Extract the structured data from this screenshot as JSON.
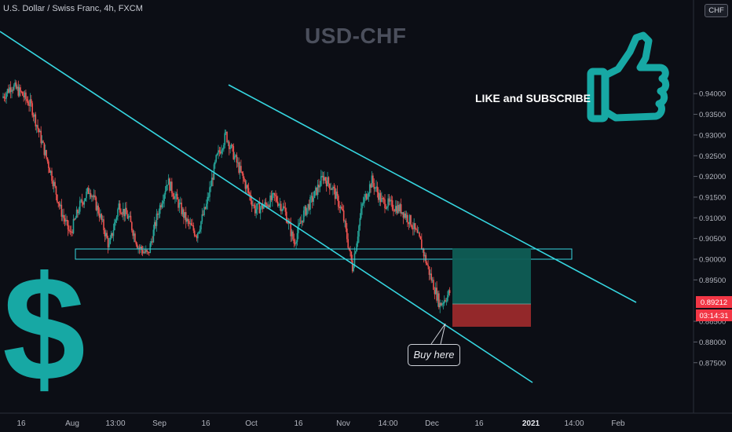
{
  "header": {
    "symbol_info": "U.S. Dollar / Swiss Franc, 4h, FXCM",
    "currency_button": "CHF"
  },
  "overlay": {
    "title": "USD-CHF",
    "like_text": "LIKE and SUBSCRIBE",
    "buy_label": "Buy here",
    "dollar_symbol": "$"
  },
  "colors": {
    "background": "#0c0e15",
    "trendline": "#36d6e0",
    "zone_border": "#36d6e0",
    "profit_box": "#0f5e55",
    "loss_box": "#9b2a2b",
    "up_candle": "#26a69a",
    "down_candle": "#ef5350",
    "icon_teal": "#17a8a4",
    "price_label": "#f23645"
  },
  "chart_data": {
    "type": "candlestick",
    "instrument": "USD-CHF",
    "timeframe": "4h",
    "ylim": [
      0.8725,
      0.9425
    ],
    "y_ticks": [
      "0.94000",
      "0.93500",
      "0.93000",
      "0.92500",
      "0.92000",
      "0.91500",
      "0.91000",
      "0.90500",
      "0.90000",
      "0.89500",
      "0.88500",
      "0.88000",
      "0.87500"
    ],
    "x_ticks": [
      "16",
      "Aug",
      "13:00",
      "Sep",
      "16",
      "Oct",
      "16",
      "Nov",
      "14:00",
      "Dec",
      "16",
      "2021",
      "14:00",
      "Feb"
    ],
    "last_price": "0.89212",
    "countdown": "03:14:31",
    "price_path": [
      {
        "x": "Jul 14",
        "y": 0.939
      },
      {
        "x": "Jul 16",
        "y": 0.942
      },
      {
        "x": "Jul 19",
        "y": 0.94
      },
      {
        "x": "Jul 22",
        "y": 0.937
      },
      {
        "x": "Jul 24",
        "y": 0.929
      },
      {
        "x": "Jul 27",
        "y": 0.921
      },
      {
        "x": "Jul 30",
        "y": 0.912
      },
      {
        "x": "Aug 3",
        "y": 0.906
      },
      {
        "x": "Aug 6",
        "y": 0.913
      },
      {
        "x": "Aug 10",
        "y": 0.917
      },
      {
        "x": "Aug 13",
        "y": 0.911
      },
      {
        "x": "Aug 17",
        "y": 0.903
      },
      {
        "x": "Aug 20",
        "y": 0.913
      },
      {
        "x": "Aug 24",
        "y": 0.91
      },
      {
        "x": "Aug 28",
        "y": 0.903
      },
      {
        "x": "Sep 1",
        "y": 0.901
      },
      {
        "x": "Sep 4",
        "y": 0.911
      },
      {
        "x": "Sep 9",
        "y": 0.919
      },
      {
        "x": "Sep 11",
        "y": 0.914
      },
      {
        "x": "Sep 14",
        "y": 0.909
      },
      {
        "x": "Sep 17",
        "y": 0.906
      },
      {
        "x": "Sep 21",
        "y": 0.913
      },
      {
        "x": "Sep 24",
        "y": 0.924
      },
      {
        "x": "Sep 25",
        "y": 0.93
      },
      {
        "x": "Sep 28",
        "y": 0.924
      },
      {
        "x": "Oct 1",
        "y": 0.918
      },
      {
        "x": "Oct 5",
        "y": 0.912
      },
      {
        "x": "Oct 8",
        "y": 0.913
      },
      {
        "x": "Oct 12",
        "y": 0.915
      },
      {
        "x": "Oct 15",
        "y": 0.912
      },
      {
        "x": "Oct 20",
        "y": 0.904
      },
      {
        "x": "Oct 24",
        "y": 0.911
      },
      {
        "x": "Oct 27",
        "y": 0.915
      },
      {
        "x": "Oct 30",
        "y": 0.92
      },
      {
        "x": "Nov 2",
        "y": 0.917
      },
      {
        "x": "Nov 5",
        "y": 0.911
      },
      {
        "x": "Nov 8",
        "y": 0.898
      },
      {
        "x": "Nov 10",
        "y": 0.913
      },
      {
        "x": "Nov 12",
        "y": 0.919
      },
      {
        "x": "Nov 16",
        "y": 0.914
      },
      {
        "x": "Nov 19",
        "y": 0.913
      },
      {
        "x": "Nov 23",
        "y": 0.912
      },
      {
        "x": "Nov 26",
        "y": 0.909
      },
      {
        "x": "Nov 30",
        "y": 0.904
      },
      {
        "x": "Dec 2",
        "y": 0.896
      },
      {
        "x": "Dec 4",
        "y": 0.889
      },
      {
        "x": "Dec 7",
        "y": 0.892
      }
    ],
    "annotations": {
      "resistance_zone": [
        0.9,
        0.902
      ],
      "take_profit": 0.902,
      "entry": 0.8922,
      "stop_loss": 0.8877
    }
  }
}
